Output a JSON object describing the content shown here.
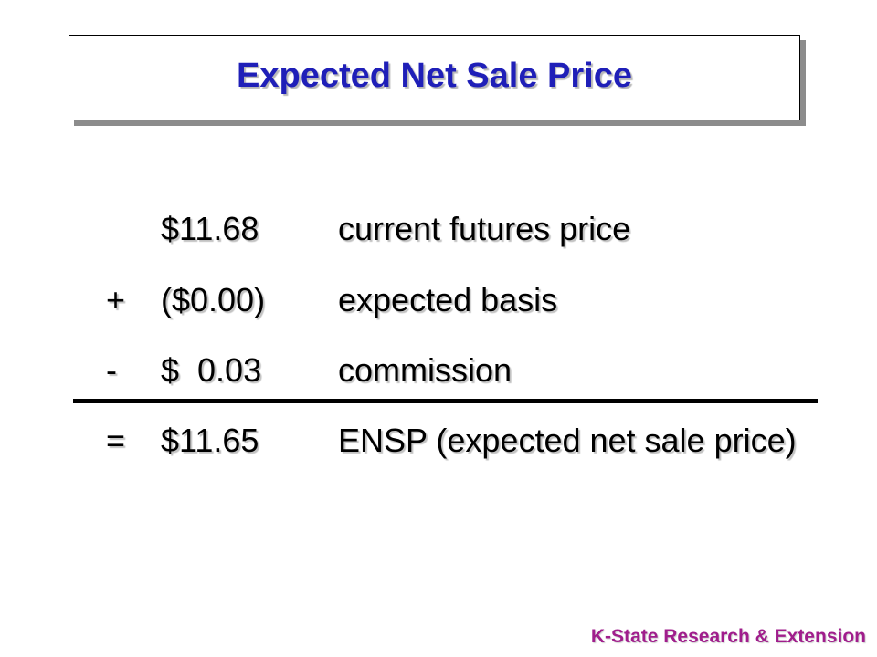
{
  "slide": {
    "title": "Expected Net Sale Price",
    "footer": "K-State Research & Extension",
    "title_color": "#1f1fb8",
    "footer_color": "#a01d8c"
  },
  "calculation": {
    "rows": [
      {
        "operator": "",
        "amount": "$11.68",
        "description": "current futures price"
      },
      {
        "operator": "+",
        "amount": "($0.00)",
        "description": "expected basis"
      },
      {
        "operator": "-",
        "amount": "$  0.03",
        "description": "commission"
      },
      {
        "operator": "=",
        "amount": "$11.65",
        "description": "ENSP (expected net sale price)"
      }
    ]
  }
}
